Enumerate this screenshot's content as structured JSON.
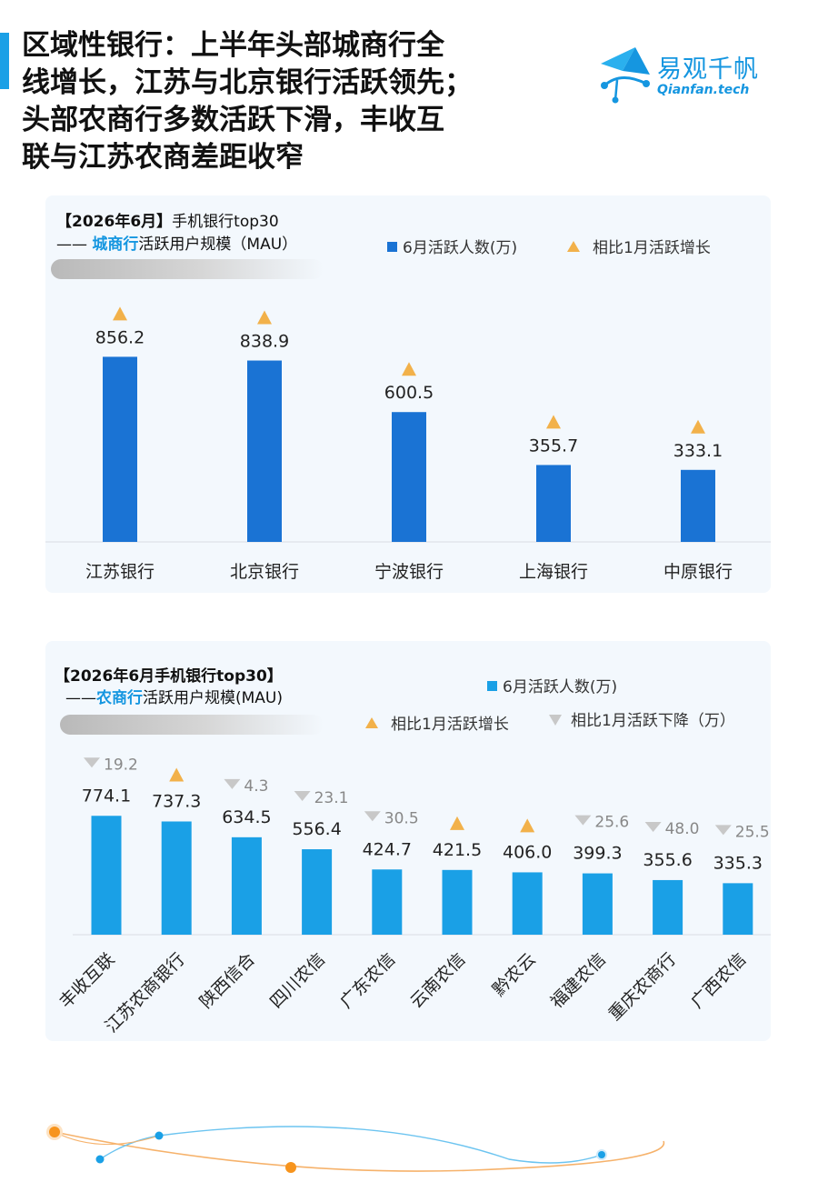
{
  "title_lines": [
    "区域性银行：上半年头部城商行全",
    "线增长，江苏与北京银行活跃领先；",
    "头部农商行多数活跃下滑，丰收互",
    "联与江苏农商差距收窄"
  ],
  "logo": {
    "name_cn": "易观千帆",
    "name_en": "Qianfan.tech"
  },
  "colors": {
    "bar_chart1": "#1a73d4",
    "bar_chart2": "#1aa0e6",
    "increase": "#f2b14a",
    "decrease": "#c8c8c8",
    "accent": "#1596e0"
  },
  "panel1": {
    "title_bracket": "【2026年6月】",
    "title_rest": "手机银行top30",
    "subtitle_prefix": "—— ",
    "subtitle_highlight": "城商行",
    "subtitle_rest": "活跃用户规模（MAU）",
    "legend_bar": "6月活跃人数(万)",
    "legend_up": "相比1月活跃增长"
  },
  "panel2": {
    "title": "【2026年6月手机银行top30】",
    "subtitle_prefix": "——",
    "subtitle_highlight": "农商行",
    "subtitle_rest": "活跃用户规模(MAU)",
    "legend_bar": "6月活跃人数(万)",
    "legend_up": "相比1月活跃增长",
    "legend_down": "相比1月活跃下降（万）"
  },
  "chart_data": [
    {
      "type": "bar",
      "categories": [
        "江苏银行",
        "北京银行",
        "宁波银行",
        "上海银行",
        "中原银行"
      ],
      "series": [
        {
          "name": "6月活跃人数(万)",
          "values": [
            856.2,
            838.9,
            600.5,
            355.7,
            333.1
          ]
        }
      ],
      "change_vs_jan": [
        "up",
        "up",
        "up",
        "up",
        "up"
      ],
      "ylim": [
        0,
        900
      ],
      "grid": false,
      "legend_position": "top-right"
    },
    {
      "type": "bar",
      "categories": [
        "丰收互联",
        "江苏农商银行",
        "陕西信合",
        "四川农信",
        "广东农信",
        "云南农信",
        "黔农云",
        "福建农信",
        "重庆农商行",
        "广西农信"
      ],
      "series": [
        {
          "name": "6月活跃人数(万)",
          "values": [
            774.1,
            737.3,
            634.5,
            556.4,
            424.7,
            421.5,
            406.0,
            399.3,
            355.6,
            335.3
          ]
        }
      ],
      "change_vs_jan": [
        "down",
        "up",
        "down",
        "down",
        "down",
        "up",
        "up",
        "down",
        "down",
        "down"
      ],
      "decrease_labels": [
        "19.2",
        "",
        "4.3",
        "23.1",
        "30.5",
        "",
        "",
        "25.6",
        "48.0",
        "25.5"
      ],
      "value_labels": [
        "774.1",
        "737.3",
        "634.5",
        "556.4",
        "424.7",
        "421.5",
        "406.0",
        "399.3",
        "355.6",
        "335.3"
      ],
      "ylim": [
        0,
        900
      ],
      "grid": false,
      "legend_position": "top-right"
    }
  ]
}
